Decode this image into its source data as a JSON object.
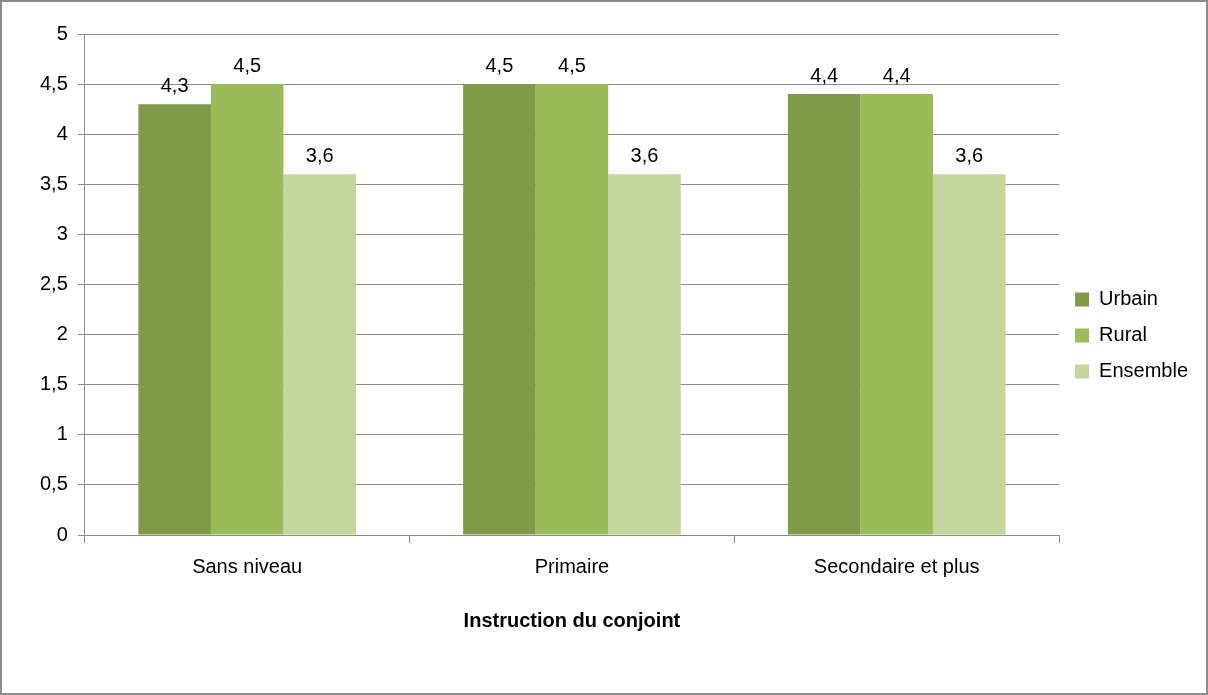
{
  "chart_data": {
    "type": "bar",
    "xlabel": "Instruction du conjoint",
    "categories": [
      "Sans niveau",
      "Primaire",
      "Secondaire et plus"
    ],
    "series": [
      {
        "name": "Urbain",
        "color": "#7f9a48",
        "values": [
          4.3,
          4.5,
          4.4
        ],
        "value_labels": [
          "4,3",
          "4,5",
          "4,4"
        ]
      },
      {
        "name": "Rural",
        "color": "#9bbb59",
        "values": [
          4.5,
          4.5,
          4.4
        ],
        "value_labels": [
          "4,5",
          "4,5",
          "4,4"
        ]
      },
      {
        "name": "Ensemble",
        "color": "#c3d69b",
        "values": [
          3.6,
          3.6,
          3.6
        ],
        "value_labels": [
          "3,6",
          "3,6",
          "3,6"
        ]
      }
    ],
    "ylim": [
      0,
      5
    ],
    "yticks": [
      0,
      {
        "value": 0.5,
        "label": "0,5"
      },
      1,
      {
        "value": 1.5,
        "label": "1,5"
      },
      2,
      {
        "value": 2.5,
        "label": "2,5"
      },
      3,
      {
        "value": 3.5,
        "label": "3,5"
      },
      4,
      {
        "value": 4.5,
        "label": "4,5"
      },
      5
    ],
    "grid": "y",
    "legend": "right"
  }
}
